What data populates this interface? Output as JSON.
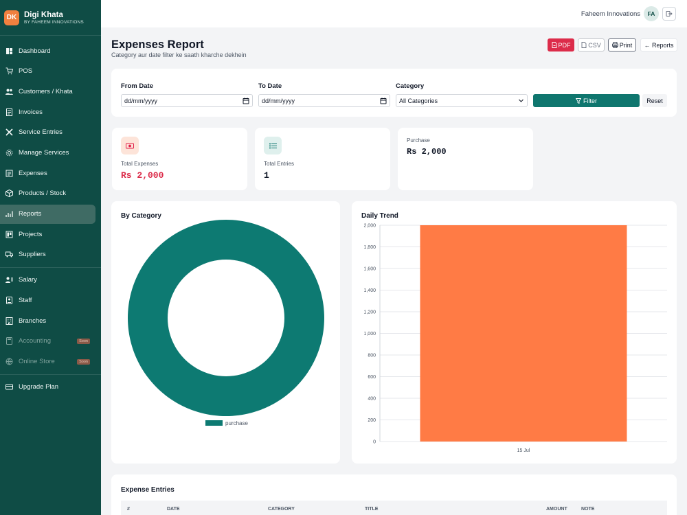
{
  "brand": {
    "logo": "DK",
    "name": "Digi Khata",
    "sub": "BY FAHEEM INNOVATIONS"
  },
  "nav": [
    {
      "label": "Dashboard",
      "icon": "dashboard-icon"
    },
    {
      "label": "POS",
      "icon": "cart-icon"
    },
    {
      "label": "Customers / Khata",
      "icon": "users-icon"
    },
    {
      "label": "Invoices",
      "icon": "invoice-icon"
    },
    {
      "label": "Service Entries",
      "icon": "tools-icon"
    },
    {
      "label": "Manage Services",
      "icon": "gear-icon"
    },
    {
      "label": "Expenses",
      "icon": "expenses-icon"
    },
    {
      "label": "Products / Stock",
      "icon": "box-icon"
    },
    {
      "label": "Reports",
      "icon": "chart-icon",
      "active": true
    },
    {
      "label": "Projects",
      "icon": "projects-icon"
    },
    {
      "label": "Suppliers",
      "icon": "truck-icon"
    },
    {
      "label": "Salary",
      "icon": "salary-icon"
    },
    {
      "label": "Staff",
      "icon": "staff-icon"
    },
    {
      "label": "Branches",
      "icon": "branches-icon"
    },
    {
      "label": "Accounting",
      "icon": "accounting-icon",
      "badge": "Soon",
      "disabled": true
    },
    {
      "label": "Online Store",
      "icon": "store-icon",
      "badge": "Soon",
      "disabled": true
    },
    {
      "label": "Upgrade Plan",
      "icon": "card-icon"
    }
  ],
  "topbar": {
    "user_name": "Faheem Innovations",
    "avatar": "FA"
  },
  "header": {
    "title": "Expenses Report",
    "subtitle": "Category aur date filter ke saath kharche dekhein",
    "pdf_label": "PDF",
    "csv_label": "CSV",
    "print_label": "Print",
    "reports_label": "← Reports"
  },
  "filters": {
    "from_label": "From Date",
    "from_value": "dd/mm/yyyy",
    "to_label": "To Date",
    "to_value": "dd/mm/yyyy",
    "category_label": "Category",
    "category_value": "All Categories",
    "filter_label": "Filter",
    "reset_label": "Reset"
  },
  "stats": {
    "total_expenses_label": "Total Expenses",
    "total_expenses_value": "Rs 2,000",
    "total_entries_label": "Total Entries",
    "total_entries_value": "1",
    "purchase_label": "Purchase",
    "purchase_value": "Rs 2,000"
  },
  "colors": {
    "sidebar": "#0f4c45",
    "accent": "#0f766e",
    "donut": "#0d7a72",
    "bar": "#ff7b45",
    "danger": "#dc2c4a"
  },
  "chart_data": [
    {
      "type": "pie",
      "title": "By Category",
      "labels": [
        "purchase"
      ],
      "values": [
        2000
      ],
      "legend": "bottom"
    },
    {
      "type": "bar",
      "title": "Daily Trend",
      "categories": [
        "15 Jul"
      ],
      "values": [
        2000
      ],
      "ylim": [
        0,
        2000
      ],
      "yticks": [
        0,
        200,
        400,
        600,
        800,
        1000,
        1200,
        1400,
        1600,
        1800,
        2000
      ],
      "ytick_labels": [
        "0",
        "200",
        "400",
        "600",
        "800",
        "1,000",
        "1,200",
        "1,400",
        "1,600",
        "1,800",
        "2,000"
      ],
      "grid": true
    }
  ],
  "entries": {
    "title": "Expense Entries",
    "columns": [
      "#",
      "DATE",
      "CATEGORY",
      "TITLE",
      "AMOUNT",
      "NOTE"
    ]
  }
}
